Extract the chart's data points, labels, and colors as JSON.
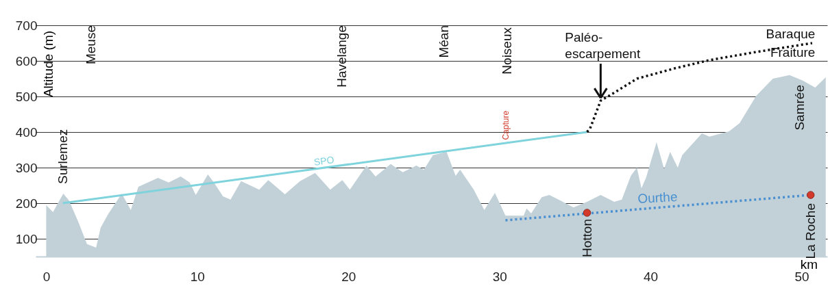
{
  "chart_data": {
    "type": "area",
    "ylabel": "Altitude (m)",
    "xlabel": "km",
    "xlim": [
      -0.7,
      51.7
    ],
    "ylim": [
      50,
      700
    ],
    "xticks": [
      0,
      10,
      20,
      30,
      40,
      50
    ],
    "yticks": [
      100,
      200,
      300,
      400,
      500,
      600,
      700
    ],
    "grid": "y",
    "series": [
      {
        "color": "#c2d1d8",
        "x": [
          0,
          0.45,
          1.13,
          1.5,
          2.1,
          2.7,
          3.3,
          3.6,
          4.1,
          5.0,
          5.6,
          6.1,
          7.4,
          8.1,
          8.9,
          9.5,
          9.9,
          10.7,
          11.1,
          11.7,
          12.2,
          12.9,
          14.1,
          14.7,
          15.8,
          16.8,
          17.8,
          18.8,
          19.6,
          20.1,
          21.2,
          21.8,
          22.8,
          23.6,
          24.5,
          25.0,
          25.6,
          26.5,
          27.1,
          27.4,
          28.3,
          29.0,
          29.7,
          30.4,
          31.6,
          31.8,
          32.1,
          32.8,
          33.3,
          34.0,
          34.9,
          35.8,
          36.7,
          37.6,
          38.1,
          38.7,
          39.1,
          39.4,
          39.7,
          40.4,
          40.9,
          41.3,
          41.8,
          42.1,
          43.4,
          43.9,
          45.2,
          45.9,
          47.0,
          48.1,
          49.2,
          50.1,
          50.9,
          51.6
        ],
        "values": [
          194,
          175,
          227,
          208,
          150,
          85,
          75,
          131,
          169,
          227,
          181,
          246,
          271,
          258,
          275,
          258,
          223,
          281,
          258,
          219,
          210,
          262,
          238,
          265,
          225,
          262,
          285,
          238,
          265,
          238,
          306,
          275,
          310,
          287,
          306,
          294,
          335,
          344,
          277,
          294,
          238,
          181,
          229,
          165,
          165,
          185,
          171,
          217,
          223,
          208,
          188,
          204,
          223,
          204,
          210,
          277,
          300,
          242,
          271,
          371,
          296,
          344,
          300,
          335,
          396,
          387,
          402,
          425,
          502,
          550,
          560,
          544,
          525,
          554
        ]
      },
      {
        "type": "line",
        "name": "SPO",
        "color": "#7fd3dc",
        "x": [
          1.1,
          35.8
        ],
        "values": [
          200,
          400
        ]
      },
      {
        "type": "line",
        "color": "#111111",
        "line_style": "dotted",
        "x": [
          35.8,
          36.0,
          36.7,
          37.5,
          39.1,
          41.6,
          43.9,
          46.7,
          50.7
        ],
        "values": [
          400,
          410,
          488,
          508,
          550,
          579,
          602,
          623,
          650
        ]
      },
      {
        "type": "line",
        "name": "Ourthe",
        "color": "#4a90d0",
        "line_style": "dotted",
        "x": [
          30.4,
          50.6
        ],
        "values": [
          152,
          223
        ]
      },
      {
        "type": "scatter",
        "color": "#d33a2c",
        "marker": "circle",
        "x": [
          35.8,
          50.6
        ],
        "values": [
          173,
          223
        ]
      }
    ],
    "annotations": [
      {
        "text": "Surlemez",
        "x": 1.1,
        "y": 200
      },
      "Meuse",
      "Havelange",
      "Méan",
      "Noiseux",
      {
        "text": "Capture",
        "x": 30.4,
        "y": 372
      },
      {
        "text": "Samrée",
        "x": 49.9,
        "y": 548
      },
      {
        "text": "Hotton",
        "x": 35.8,
        "y": 173
      },
      {
        "text": "La Roche",
        "x": 50.6,
        "y": 223
      },
      {
        "text": "Paléo-\nescarpement",
        "x": 36.7,
        "y": 492
      },
      {
        "text": "Baraque\nFraiture",
        "x": 50.9,
        "y": 650
      }
    ]
  }
}
